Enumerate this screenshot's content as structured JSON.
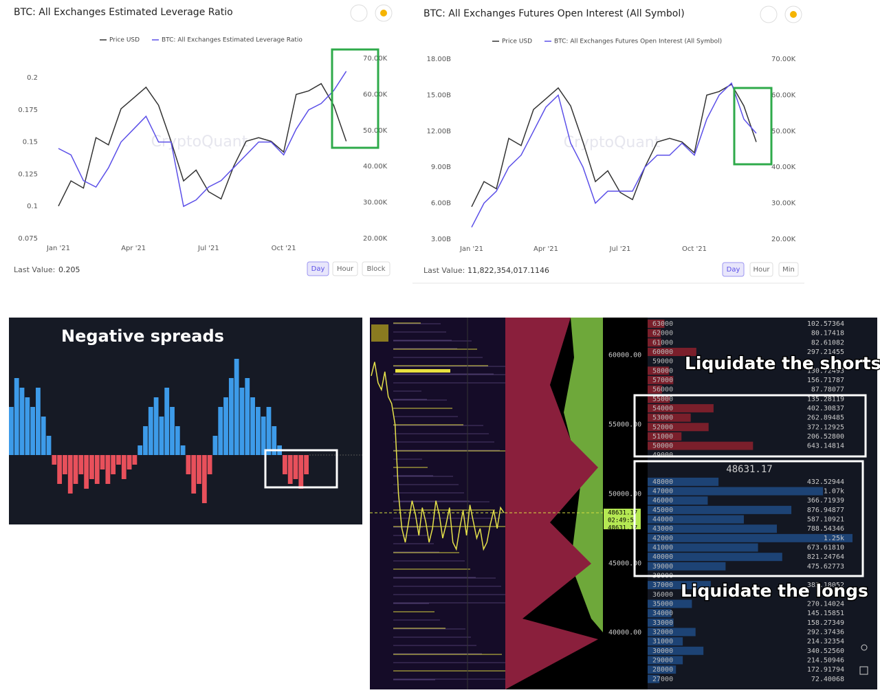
{
  "chart_data": [
    {
      "type": "line",
      "title": "BTC: All Exchanges Estimated Leverage Ratio",
      "categories": [
        "Jan '21",
        null,
        null,
        null,
        null,
        null,
        "Apr '21",
        null,
        null,
        null,
        null,
        null,
        "Jul '21",
        null,
        null,
        null,
        null,
        null,
        "Oct '21",
        null,
        null,
        null,
        null,
        null
      ],
      "series": [
        {
          "name": "Price USD",
          "color": "#333333",
          "axis": "y2",
          "values": [
            29000,
            36000,
            34000,
            48000,
            46000,
            56000,
            59000,
            62000,
            57000,
            47000,
            36000,
            39000,
            33000,
            31000,
            40000,
            47000,
            48000,
            47000,
            44000,
            60000,
            61000,
            63000,
            57000,
            47000
          ]
        },
        {
          "name": "BTC: All Exchanges Estimated Leverage Ratio",
          "color": "#5b4fe8",
          "values": [
            0.145,
            0.14,
            0.12,
            0.115,
            0.13,
            0.15,
            0.16,
            0.17,
            0.15,
            0.15,
            0.1,
            0.105,
            0.115,
            0.12,
            0.13,
            0.14,
            0.15,
            0.15,
            0.14,
            0.16,
            0.175,
            0.18,
            0.19,
            0.205
          ]
        }
      ],
      "ylim": [
        0.075,
        0.215
      ],
      "yticks": [
        0.075,
        0.1,
        0.125,
        0.15,
        0.175,
        0.2
      ],
      "y2lim": [
        20000,
        70000
      ],
      "y2ticks": [
        {
          "value": 20000,
          "label": "20.00K"
        },
        {
          "value": 30000,
          "label": "30.00K"
        },
        {
          "value": 40000,
          "label": "40.00K"
        },
        {
          "value": 50000,
          "label": "50.00K"
        },
        {
          "value": 60000,
          "label": "60.00K"
        },
        {
          "value": 70000,
          "label": "70.00K"
        }
      ],
      "watermark": "CryptoQuant",
      "last_value_label": "Last Value:",
      "last_value": 0.205,
      "buttons": [
        "Day",
        "Hour",
        "Block"
      ]
    },
    {
      "type": "line",
      "title": "BTC: All Exchanges Futures Open Interest (All Symbol)",
      "categories": [
        "Jan '21",
        null,
        null,
        null,
        null,
        null,
        "Apr '21",
        null,
        null,
        null,
        null,
        null,
        "Jul '21",
        null,
        null,
        null,
        null,
        null,
        "Oct '21",
        null,
        null,
        null,
        null,
        null
      ],
      "series": [
        {
          "name": "Price USD",
          "color": "#333333",
          "axis": "y2",
          "values": [
            29000,
            36000,
            34000,
            48000,
            46000,
            56000,
            59000,
            62000,
            57000,
            47000,
            36000,
            39000,
            33000,
            31000,
            40000,
            47000,
            48000,
            47000,
            44000,
            60000,
            61000,
            63000,
            57000,
            47000
          ]
        },
        {
          "name": "BTC: All Exchanges Futures Open Interest (All Symbol)",
          "color": "#5b4fe8",
          "values": [
            4000000000,
            6000000000,
            7000000000,
            9000000000,
            10000000000,
            12000000000,
            14000000000,
            15000000000,
            11000000000,
            9000000000,
            6000000000,
            7000000000,
            7000000000,
            7000000000,
            9000000000,
            10000000000,
            10000000000,
            11000000000,
            10000000000,
            13000000000,
            15000000000,
            16000000000,
            13000000000,
            11822354017.1146
          ]
        }
      ],
      "ylim": [
        3000000000,
        18000000000
      ],
      "yticks": [
        {
          "value": 3000000000,
          "label": "3.00B"
        },
        {
          "value": 6000000000,
          "label": "6.00B"
        },
        {
          "value": 9000000000,
          "label": "9.00B"
        },
        {
          "value": 12000000000,
          "label": "12.00B"
        },
        {
          "value": 15000000000,
          "label": "15.00B"
        },
        {
          "value": 18000000000,
          "label": "18.00B"
        }
      ],
      "y2lim": [
        20000,
        70000
      ],
      "y2ticks": [
        {
          "value": 20000,
          "label": "20.00K"
        },
        {
          "value": 30000,
          "label": "30.00K"
        },
        {
          "value": 40000,
          "label": "40.00K"
        },
        {
          "value": 50000,
          "label": "50.00K"
        },
        {
          "value": 60000,
          "label": "60.00K"
        },
        {
          "value": 70000,
          "label": "70.00K"
        }
      ],
      "watermark": "CryptoQuant",
      "last_value_label": "Last Value:",
      "last_value": "11,822,354,017.1146",
      "buttons": [
        "Day",
        "Hour",
        "Min"
      ]
    },
    {
      "type": "bar",
      "title": "Negative spreads",
      "color": "#3d9be9",
      "negative_color": "#e8505b",
      "values": [
        0.5,
        0.8,
        0.7,
        0.6,
        0.5,
        0.7,
        0.4,
        0.2,
        -0.1,
        -0.3,
        -0.2,
        -0.4,
        -0.3,
        -0.2,
        -0.35,
        -0.25,
        -0.3,
        -0.15,
        -0.3,
        -0.2,
        -0.1,
        -0.25,
        -0.15,
        -0.1,
        0.1,
        0.3,
        0.5,
        0.6,
        0.4,
        0.7,
        0.5,
        0.3,
        0.1,
        -0.2,
        -0.4,
        -0.3,
        -0.5,
        -0.2,
        0.2,
        0.5,
        0.6,
        0.8,
        1.0,
        0.7,
        0.8,
        0.6,
        0.5,
        0.4,
        0.5,
        0.3,
        0.1,
        -0.2,
        -0.3,
        -0.25,
        -0.35,
        -0.2
      ]
    },
    {
      "type": "heatmap",
      "color": "#e6e24a",
      "values": [
        58500,
        59500,
        58000,
        57500,
        58800,
        57000,
        56500,
        55000,
        50000,
        47500,
        46500,
        48000,
        49500,
        48500,
        47000,
        49000,
        48000,
        46500,
        47500,
        49500,
        48500,
        46800,
        47800,
        49000,
        46500,
        46000,
        47500,
        48800,
        47000,
        49200,
        48000,
        46800,
        47500,
        46000,
        46500,
        47800,
        48800,
        47500,
        49000,
        48631.17
      ],
      "ylim": [
        35900,
        62700
      ],
      "yticks": [
        {
          "value": 40000,
          "label": "40000.00"
        },
        {
          "value": 45000,
          "label": "45000.00"
        },
        {
          "value": 50000,
          "label": "50000.00"
        },
        {
          "value": 55000,
          "label": "55000.00"
        },
        {
          "value": 60000,
          "label": "60000.00"
        }
      ],
      "time_tag": "02:49:5",
      "annotations": [
        "Liquidate the shorts",
        "Liquidate the longs"
      ],
      "order_book": {
        "last_price": 48631.17,
        "ask_color": "#7a1f2b",
        "bid_color": "#1d4375",
        "prices": [
          63000,
          62000,
          61000,
          60000,
          59000,
          58000,
          57000,
          56000,
          55000,
          54000,
          53000,
          52000,
          51000,
          50000,
          49000,
          48000,
          47000,
          46000,
          45000,
          44000,
          43000,
          42000,
          41000,
          40000,
          39000,
          38000,
          37000,
          36000,
          35000,
          34000,
          33000,
          32000,
          31000,
          30000,
          29000,
          28000,
          27000
        ],
        "values": [
          102.57364,
          80.17418,
          82.61082,
          297.21455,
          null,
          130.72493,
          156.71787,
          87.78077,
          135.28119,
          402.30837,
          262.89485,
          372.12925,
          206.528,
          643.14814,
          null,
          432.52944,
          1070,
          366.71939,
          876.94877,
          587.10921,
          788.54346,
          1250,
          673.6181,
          821.24764,
          475.62773,
          null,
          385.18052,
          null,
          270.14024,
          145.15851,
          158.27349,
          292.37436,
          214.32354,
          340.5256,
          214.50946,
          172.91794,
          72.40068
        ],
        "value_labels": [
          "102.57364",
          "80.17418",
          "82.61082",
          "297.21455",
          null,
          "130.72493",
          "156.71787",
          "87.78077",
          "135.28119",
          "402.30837",
          "262.89485",
          "372.12925",
          "206.52800",
          "643.14814",
          null,
          "432.52944",
          "1.07k",
          "366.71939",
          "876.94877",
          "587.10921",
          "788.54346",
          "1.25k",
          "673.61810",
          "821.24764",
          "475.62773",
          null,
          "385.18052",
          null,
          "270.14024",
          "145.15851",
          "158.27349",
          "292.37436",
          "214.32354",
          "340.52560",
          "214.50946",
          "172.91794",
          "72.40068"
        ]
      }
    }
  ]
}
